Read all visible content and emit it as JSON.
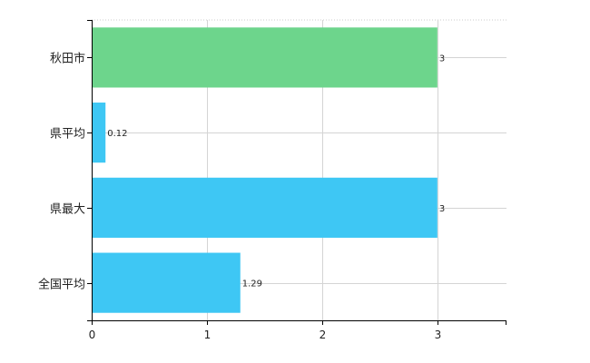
{
  "chart_data": {
    "type": "bar",
    "orientation": "horizontal",
    "categories": [
      "秋田市",
      "県平均",
      "県最大",
      "全国平均"
    ],
    "values": [
      3,
      0.12,
      3,
      1.29
    ],
    "value_labels": [
      "3",
      "0.12",
      "3",
      "1.29"
    ],
    "bar_colors": [
      "#6dd58c",
      "#3ec7f4",
      "#3ec7f4",
      "#3ec7f4"
    ],
    "xlim": [
      0,
      3.6
    ],
    "x_ticks": [
      0,
      1,
      2,
      3
    ],
    "x_tick_labels": [
      "0",
      "1",
      "2",
      "3"
    ],
    "grid": true,
    "legend": "none"
  }
}
